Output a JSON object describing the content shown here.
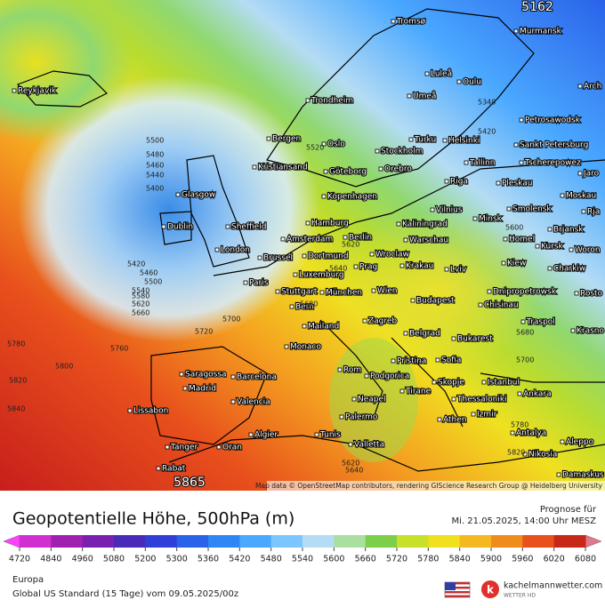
{
  "map": {
    "max_label": 5162,
    "min_label": 5865,
    "attribution": "Map data © OpenStreetMap contributors, rendering GIScience Research Group @ Heidelberg University",
    "cities": [
      "Reykjavik",
      "Tromsø",
      "Murmansk",
      "Luleå",
      "Oulu",
      "Arch",
      "Umeå",
      "Trondheim",
      "Petrosawodsk",
      "Bergen",
      "Oslo",
      "Turku",
      "Helsinki",
      "Sankt Petersburg",
      "Stockholm",
      "Tallinn",
      "Tscherepowez",
      "Kristiansand",
      "Göteborg",
      "Orebro",
      "Jaro",
      "Riga",
      "Pleskau",
      "Glasgow",
      "Kopenhagen",
      "Moskau",
      "Smolensk",
      "Vilnius",
      "Minsk",
      "Dublin",
      "Sheffield",
      "Hamburg",
      "Kaliningrad",
      "Brjansk",
      "Rja",
      "Berlin",
      "Amsterdam",
      "Warschau",
      "Homel",
      "Kursk",
      "Woron",
      "London",
      "Brussel",
      "Dortmund",
      "Wroclaw",
      "Kiew",
      "Lviv",
      "Krakau",
      "Prag",
      "Charkiw",
      "Luxemburg",
      "Paris",
      "Stuttgart",
      "München",
      "Wien",
      "Dnipropetrowsk",
      "Rosto",
      "Budapest",
      "Chisinau",
      "Traspol",
      "Bern",
      "Zagreb",
      "Mailand",
      "Krasno",
      "Belgrad",
      "Bukarest",
      "Monaco",
      "Pristina",
      "Sofia",
      "Rom",
      "Podgorica",
      "Skopje",
      "Istanbul",
      "Saragossa",
      "Barcelona",
      "Madrid",
      "Tirane",
      "Ankara",
      "Neapel",
      "Thessaloniki",
      "Valencia",
      "Lissabon",
      "Izmir",
      "Athen",
      "Palermo",
      "Algier",
      "Tunis",
      "Antalya",
      "Aleppo",
      "Valletta",
      "Tanger",
      "Oran",
      "Nikosia",
      "Rabat",
      "Damaskus"
    ],
    "contour_labels": [
      5500,
      5480,
      5460,
      5440,
      5400,
      5420,
      5460,
      5500,
      5540,
      5580,
      5620,
      5660,
      5340,
      5420,
      5520,
      5620,
      5640,
      5680,
      5700,
      5720,
      5780,
      5760,
      5800,
      5820,
      5840,
      5700,
      5680,
      5600,
      5780,
      5820,
      5620,
      5640
    ]
  },
  "legend": {
    "title": "Geopotentielle Höhe, 500hPa (m)",
    "forecast_label": "Prognose für",
    "forecast_time": "Mi. 21.05.2025, 14:00 Uhr MESZ",
    "ticks": [
      4720,
      4840,
      4960,
      5080,
      5200,
      5300,
      5360,
      5420,
      5480,
      5540,
      5600,
      5660,
      5720,
      5780,
      5840,
      5900,
      5960,
      6020,
      6080
    ],
    "colors": [
      "#ff40ff",
      "#d030d0",
      "#a020b0",
      "#7a20b0",
      "#4a2ab8",
      "#2f40d8",
      "#2a62ea",
      "#2f86f5",
      "#4aa8ff",
      "#7cc6ff",
      "#b4dcf4",
      "#a9e0a0",
      "#7ccf4a",
      "#c8e02a",
      "#f0e020",
      "#f4b820",
      "#f08c1c",
      "#e8501c",
      "#c82818",
      "#e07890"
    ]
  },
  "footer": {
    "region": "Europa",
    "model": "Global US Standard (15 Tage) vom 09.05.2025/00z",
    "brand": "kachelmannwetter.com",
    "brand_sub": "WETTER HD"
  }
}
